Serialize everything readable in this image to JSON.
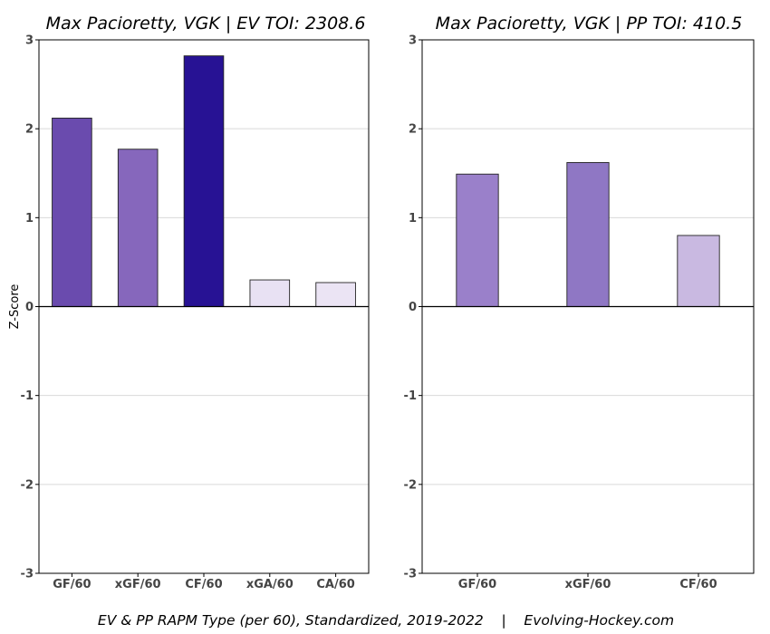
{
  "footer": "EV & PP RAPM Type (per 60), Standardized, 2019-2022    |    Evolving-Hockey.com",
  "chart_data": [
    {
      "type": "bar",
      "title": "Max Pacioretty, VGK  |  EV TOI: 2308.6",
      "ylabel": "Z-Score",
      "ylim": [
        -3,
        3
      ],
      "yticks": [
        3,
        2,
        1,
        0,
        -1,
        -2,
        -3
      ],
      "grid": true,
      "categories": [
        "GF/60",
        "xGF/60",
        "CF/60",
        "xGA/60",
        "CA/60"
      ],
      "values": [
        2.12,
        1.77,
        2.82,
        0.3,
        0.27
      ],
      "colors": [
        "#6a4bae",
        "#8667bc",
        "#271294",
        "#e8e1f3",
        "#ebe4f4"
      ]
    },
    {
      "type": "bar",
      "title": "Max Pacioretty, VGK  |  PP TOI: 410.5",
      "ylabel": "",
      "ylim": [
        -3,
        3
      ],
      "yticks": [
        3,
        2,
        1,
        0,
        -1,
        -2,
        -3
      ],
      "grid": true,
      "categories": [
        "GF/60",
        "xGF/60",
        "CF/60"
      ],
      "values": [
        1.49,
        1.62,
        0.8
      ],
      "colors": [
        "#9a80ca",
        "#8f77c4",
        "#c9b9e1"
      ]
    }
  ]
}
